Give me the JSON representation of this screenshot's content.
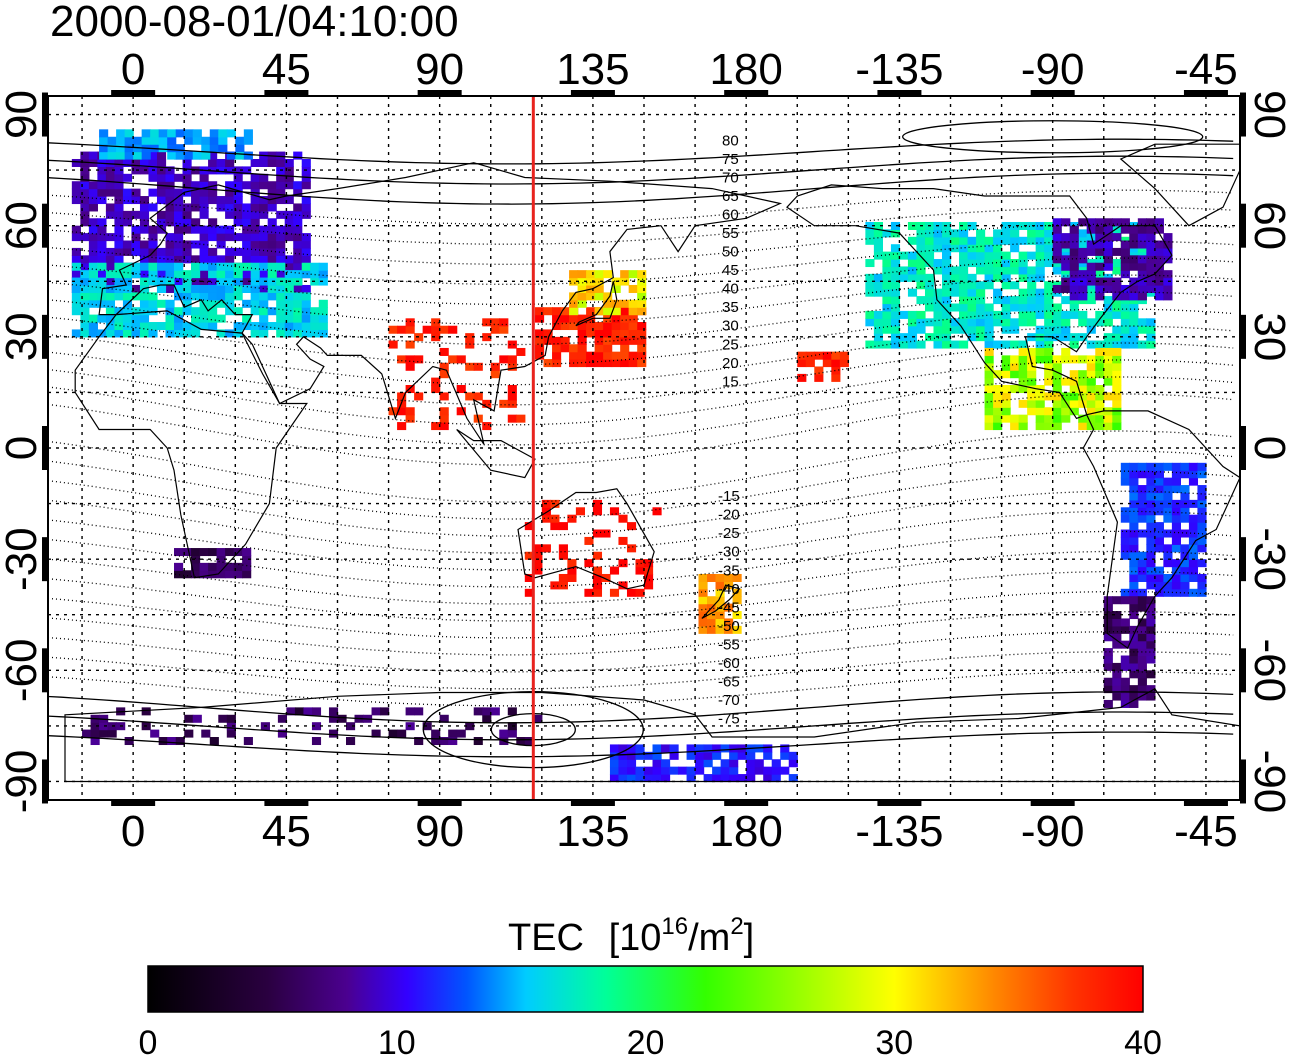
{
  "timestamp": "2000-08-01/04:10:00",
  "axes": {
    "lon_top_labels": [
      "0",
      "45",
      "90",
      "135",
      "180",
      "-135",
      "-90",
      "-45"
    ],
    "lon_bottom_labels": [
      "0",
      "45",
      "90",
      "135",
      "180",
      "-135",
      "-90",
      "-45"
    ],
    "lat_left_labels": [
      "90",
      "60",
      "30",
      "0",
      "-30",
      "-60",
      "-90"
    ],
    "lat_right_labels": [
      "90",
      "60",
      "30",
      "0",
      "-30",
      "-60",
      "-90"
    ],
    "lon_range": [
      -25,
      325
    ],
    "lat_range": [
      -95,
      95
    ]
  },
  "marker": {
    "longitude": 117.5,
    "color": "#e8231e"
  },
  "contour_labels_north": [
    "80",
    "75",
    "70",
    "65",
    "60",
    "55",
    "50",
    "45",
    "40",
    "35",
    "30",
    "25",
    "20",
    "15"
  ],
  "contour_labels_south": [
    "-15",
    "-20",
    "-25",
    "-30",
    "-35",
    "-40",
    "-45",
    "-50",
    "-55",
    "-60",
    "-65",
    "-70",
    "-75"
  ],
  "colorbar": {
    "title_prefix": "TEC",
    "title_unit_base": "[10",
    "title_unit_exp": "16",
    "title_unit_mid": "/m",
    "title_unit_exp2": "2",
    "title_unit_end": "]",
    "tick_labels": [
      "0",
      "10",
      "20",
      "30",
      "40"
    ],
    "range": [
      0,
      40
    ],
    "colors": [
      "#000000",
      "#2a0040",
      "#4b0090",
      "#3300ff",
      "#0055ff",
      "#00ccff",
      "#00ff99",
      "#33ff00",
      "#ffff00",
      "#ff8800",
      "#ff3300",
      "#ff0000"
    ]
  },
  "tec_regions": [
    {
      "name": "europe-high",
      "lon": [
        -18,
        50
      ],
      "lat": [
        42,
        80
      ],
      "tec": 9
    },
    {
      "name": "europe-mid",
      "lon": [
        -18,
        55
      ],
      "lat": [
        30,
        50
      ],
      "tec": 19
    },
    {
      "name": "europe-arctic",
      "lon": [
        -10,
        35
      ],
      "lat": [
        78,
        85
      ],
      "tec": 17
    },
    {
      "name": "japan-china",
      "lon": [
        118,
        150
      ],
      "lat": [
        22,
        38
      ],
      "tec": 38
    },
    {
      "name": "japan-north",
      "lon": [
        128,
        150
      ],
      "lat": [
        36,
        48
      ],
      "tec": 30
    },
    {
      "name": "east-asia-sparse",
      "lon": [
        75,
        115
      ],
      "lat": [
        5,
        35
      ],
      "tec": 38
    },
    {
      "name": "australia",
      "lon": [
        115,
        155
      ],
      "lat": [
        -40,
        -15
      ],
      "tec": 39
    },
    {
      "name": "new-zealand",
      "lon": [
        166,
        178
      ],
      "lat": [
        -50,
        -35
      ],
      "tec": 32
    },
    {
      "name": "hawaii",
      "lon": [
        195,
        208
      ],
      "lat": [
        18,
        25
      ],
      "tec": 38
    },
    {
      "name": "north-america",
      "lon": [
        215,
        300
      ],
      "lat": [
        27,
        60
      ],
      "tec": 20
    },
    {
      "name": "north-america-east",
      "lon": [
        270,
        305
      ],
      "lat": [
        40,
        62
      ],
      "tec": 8
    },
    {
      "name": "central-america",
      "lon": [
        250,
        290
      ],
      "lat": [
        5,
        27
      ],
      "tec": 28
    },
    {
      "name": "south-america",
      "lon": [
        290,
        315
      ],
      "lat": [
        -40,
        -5
      ],
      "tec": 13
    },
    {
      "name": "south-america-south",
      "lon": [
        285,
        300
      ],
      "lat": [
        -70,
        -40
      ],
      "tec": 6
    },
    {
      "name": "south-africa",
      "lon": [
        12,
        33
      ],
      "lat": [
        -35,
        -27
      ],
      "tec": 5
    },
    {
      "name": "antarctica-rim",
      "lon": [
        -15,
        120
      ],
      "lat": [
        -80,
        -70
      ],
      "tec": 5
    },
    {
      "name": "antarctic-blue",
      "lon": [
        140,
        195
      ],
      "lat": [
        -90,
        -80
      ],
      "tec": 12
    }
  ]
}
